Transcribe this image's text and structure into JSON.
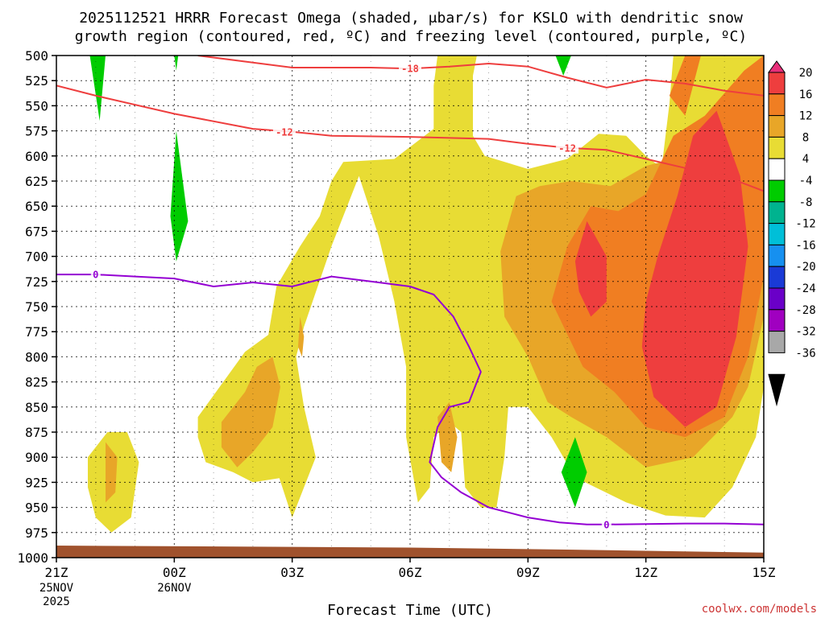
{
  "chart_data": {
    "type": "contour",
    "title_line1": "2025112521 HRRR Forecast Omega (shaded, μbar/s) for KSLO with dendritic snow",
    "title_line2": "growth region (contoured, red, ºC) and freezing level (contoured, purple, ºC)",
    "xlabel": "Forecast Time (UTC)",
    "credit": "coolwx.com/models",
    "x_ticks": [
      {
        "hour": 0,
        "label": "21Z",
        "date1": "25NOV",
        "date2": "2025"
      },
      {
        "hour": 3,
        "label": "00Z",
        "date1": "26NOV",
        "date2": ""
      },
      {
        "hour": 6,
        "label": "03Z",
        "date1": "",
        "date2": ""
      },
      {
        "hour": 9,
        "label": "06Z",
        "date1": "",
        "date2": ""
      },
      {
        "hour": 12,
        "label": "09Z",
        "date1": "",
        "date2": ""
      },
      {
        "hour": 15,
        "label": "12Z",
        "date1": "",
        "date2": ""
      },
      {
        "hour": 18,
        "label": "15Z",
        "date1": "",
        "date2": ""
      }
    ],
    "xlim": [
      0,
      18
    ],
    "ylim": [
      1000,
      500
    ],
    "y_ticks": [
      500,
      525,
      550,
      575,
      600,
      625,
      650,
      675,
      700,
      725,
      750,
      775,
      800,
      825,
      850,
      875,
      900,
      925,
      950,
      975,
      1000
    ],
    "colorbar": {
      "levels": [
        "20",
        "16",
        "12",
        "8",
        "4",
        "-4",
        "-8",
        "-12",
        "-16",
        "-20",
        "-24",
        "-28",
        "-32",
        "-36"
      ],
      "bins": [
        {
          "color": "#e8307a"
        },
        {
          "color": "#ee3e3e"
        },
        {
          "color": "#f07e22"
        },
        {
          "color": "#e8a628"
        },
        {
          "color": "#e8dc34"
        },
        {
          "color": "#ffffff"
        },
        {
          "color": "#00cc00"
        },
        {
          "color": "#00b38f"
        },
        {
          "color": "#00bfd8"
        },
        {
          "color": "#1690f0"
        },
        {
          "color": "#1a3ad6"
        },
        {
          "color": "#6a00c8"
        },
        {
          "color": "#a000c0"
        },
        {
          "color": "#a8a8a8"
        },
        {
          "color": "#000000"
        }
      ]
    },
    "dendritic_contours": [
      {
        "level": -12,
        "points": [
          [
            0,
            530
          ],
          [
            1,
            540
          ],
          [
            3,
            558
          ],
          [
            5,
            573
          ],
          [
            6,
            576
          ],
          [
            7,
            580
          ],
          [
            9,
            581
          ],
          [
            11,
            583
          ],
          [
            12,
            588
          ],
          [
            13,
            592
          ],
          [
            14,
            594
          ],
          [
            15,
            603
          ],
          [
            16,
            612
          ],
          [
            17,
            620
          ],
          [
            18,
            635
          ]
        ],
        "labels": [
          {
            "text": "-12",
            "hour": 5.8,
            "p": 576
          },
          {
            "text": "-12",
            "hour": 13.0,
            "p": 592
          }
        ]
      },
      {
        "level": -18,
        "points": [
          [
            3.6,
            500
          ],
          [
            5,
            507
          ],
          [
            6,
            512
          ],
          [
            8,
            512
          ],
          [
            9,
            513
          ],
          [
            10,
            511
          ],
          [
            11,
            508
          ],
          [
            12,
            511
          ],
          [
            13,
            522
          ],
          [
            14,
            532
          ],
          [
            15,
            524
          ],
          [
            16,
            528
          ],
          [
            17,
            535
          ],
          [
            18,
            540
          ]
        ],
        "labels": [
          {
            "text": "-18",
            "hour": 9.0,
            "p": 513
          }
        ]
      }
    ],
    "freezing_level": {
      "level": 0,
      "points": [
        [
          0,
          718
        ],
        [
          1,
          718
        ],
        [
          2,
          720
        ],
        [
          3,
          722
        ],
        [
          4,
          730
        ],
        [
          5,
          726
        ],
        [
          6,
          730
        ],
        [
          7,
          720
        ],
        [
          8,
          725
        ],
        [
          9,
          730
        ],
        [
          9.6,
          738
        ],
        [
          10.1,
          760
        ],
        [
          10.5,
          790
        ],
        [
          10.8,
          815
        ],
        [
          10.5,
          845
        ],
        [
          10,
          850
        ],
        [
          9.7,
          870
        ],
        [
          9.5,
          905
        ],
        [
          9.8,
          920
        ],
        [
          10.3,
          935
        ],
        [
          11,
          950
        ],
        [
          12,
          960
        ],
        [
          12.8,
          965
        ],
        [
          13.5,
          967
        ],
        [
          14,
          967
        ],
        [
          16,
          966
        ],
        [
          17,
          966
        ],
        [
          18,
          967
        ]
      ],
      "labels": [
        {
          "text": "0",
          "hour": 1.0,
          "p": 718
        },
        {
          "text": "0",
          "hour": 14.0,
          "p": 967
        }
      ]
    },
    "omega_regions": [
      {
        "level": "4",
        "color": "#e8dc34",
        "points": [
          [
            9.7,
            500
          ],
          [
            10.7,
            500
          ],
          [
            10.6,
            520
          ],
          [
            10.6,
            550
          ],
          [
            10.6,
            580
          ],
          [
            10.9,
            600
          ],
          [
            12,
            613
          ],
          [
            13,
            603
          ],
          [
            13.8,
            578
          ],
          [
            14.5,
            580
          ],
          [
            15,
            600
          ],
          [
            15.4,
            612
          ],
          [
            15.6,
            548
          ],
          [
            15.7,
            500
          ],
          [
            18,
            500
          ],
          [
            18,
            830
          ],
          [
            17.8,
            880
          ],
          [
            17.2,
            930
          ],
          [
            16.5,
            960
          ],
          [
            15.5,
            958
          ],
          [
            14.5,
            945
          ],
          [
            13.2,
            920
          ],
          [
            12.6,
            880
          ],
          [
            12,
            850
          ],
          [
            11.5,
            850
          ],
          [
            11.4,
            900
          ],
          [
            11.2,
            950
          ],
          [
            10.8,
            950
          ],
          [
            10.4,
            930
          ],
          [
            10.3,
            875
          ],
          [
            10,
            865
          ],
          [
            9.6,
            880
          ],
          [
            9.5,
            930
          ],
          [
            9.2,
            945
          ],
          [
            8.9,
            880
          ],
          [
            8.9,
            810
          ],
          [
            8.6,
            745
          ],
          [
            8.2,
            680
          ],
          [
            7.7,
            620
          ],
          [
            7.0,
            690
          ],
          [
            6.3,
            770
          ],
          [
            6.1,
            800
          ],
          [
            6.3,
            850
          ],
          [
            6.6,
            900
          ],
          [
            6.0,
            960
          ],
          [
            5.5,
            900
          ],
          [
            5.3,
            800
          ],
          [
            5.6,
            730
          ],
          [
            6.2,
            690
          ],
          [
            6.7,
            660
          ],
          [
            7.0,
            625
          ],
          [
            7.3,
            606
          ],
          [
            8.6,
            603
          ],
          [
            9.6,
            573
          ],
          [
            9.6,
            530
          ]
        ]
      },
      {
        "level": "4",
        "color": "#e8dc34",
        "points": [
          [
            3.6,
            860
          ],
          [
            4.8,
            795
          ],
          [
            5.5,
            775
          ],
          [
            5.8,
            780
          ],
          [
            6.1,
            850
          ],
          [
            5.8,
            920
          ],
          [
            5.0,
            925
          ],
          [
            4.5,
            915
          ],
          [
            3.8,
            905
          ],
          [
            3.6,
            880
          ]
        ]
      },
      {
        "level": "4",
        "color": "#e8dc34",
        "points": [
          [
            0.8,
            900
          ],
          [
            1.3,
            875
          ],
          [
            1.8,
            875
          ],
          [
            2.1,
            905
          ],
          [
            1.9,
            960
          ],
          [
            1.4,
            975
          ],
          [
            1.0,
            960
          ],
          [
            0.8,
            930
          ]
        ]
      },
      {
        "level": "8",
        "color": "#e8a628",
        "points": [
          [
            11.3,
            695
          ],
          [
            11.7,
            640
          ],
          [
            12.3,
            630
          ],
          [
            13.1,
            625
          ],
          [
            14.1,
            630
          ],
          [
            15,
            610
          ],
          [
            16,
            600
          ],
          [
            17,
            580
          ],
          [
            18,
            570
          ],
          [
            18,
            760
          ],
          [
            17.6,
            830
          ],
          [
            17.2,
            860
          ],
          [
            16.2,
            900
          ],
          [
            15,
            910
          ],
          [
            14,
            880
          ],
          [
            13.1,
            860
          ],
          [
            12.5,
            845
          ],
          [
            12,
            800
          ],
          [
            11.4,
            760
          ]
        ]
      },
      {
        "level": "8",
        "color": "#e8a628",
        "points": [
          [
            4.2,
            865
          ],
          [
            4.8,
            835
          ],
          [
            5.1,
            810
          ],
          [
            5.5,
            800
          ],
          [
            5.7,
            830
          ],
          [
            5.5,
            870
          ],
          [
            5.0,
            895
          ],
          [
            4.6,
            910
          ],
          [
            4.2,
            890
          ]
        ]
      },
      {
        "level": "8",
        "color": "#e8a628",
        "points": [
          [
            6.2,
            760
          ],
          [
            6.3,
            780
          ],
          [
            6.25,
            800
          ],
          [
            6.15,
            790
          ]
        ]
      },
      {
        "level": "8",
        "color": "#e8a628",
        "points": [
          [
            9.7,
            860
          ],
          [
            10,
            845
          ],
          [
            10.2,
            880
          ],
          [
            10.05,
            915
          ],
          [
            9.8,
            905
          ]
        ]
      },
      {
        "level": "8",
        "color": "#e8a628",
        "points": [
          [
            1.25,
            885
          ],
          [
            1.55,
            900
          ],
          [
            1.5,
            935
          ],
          [
            1.25,
            945
          ]
        ]
      },
      {
        "level": "12",
        "color": "#f07e22",
        "points": [
          [
            12.6,
            745
          ],
          [
            13,
            690
          ],
          [
            13.6,
            650
          ],
          [
            14.3,
            655
          ],
          [
            15,
            638
          ],
          [
            15.7,
            580
          ],
          [
            16.5,
            560
          ],
          [
            17.5,
            515
          ],
          [
            18,
            500
          ],
          [
            18,
            720
          ],
          [
            17.6,
            800
          ],
          [
            17,
            860
          ],
          [
            16,
            880
          ],
          [
            15,
            870
          ],
          [
            14.2,
            835
          ],
          [
            13.4,
            810
          ]
        ]
      },
      {
        "level": "12",
        "color": "#f07e22",
        "points": [
          [
            15.6,
            540
          ],
          [
            16,
            500
          ],
          [
            16.4,
            500
          ],
          [
            16,
            560
          ]
        ]
      },
      {
        "level": "16",
        "color": "#ee3e3e",
        "points": [
          [
            13.2,
            705
          ],
          [
            13.5,
            665
          ],
          [
            14,
            700
          ],
          [
            14,
            745
          ],
          [
            13.6,
            760
          ],
          [
            13.3,
            735
          ]
        ]
      },
      {
        "level": "16",
        "color": "#ee3e3e",
        "points": [
          [
            15,
            745
          ],
          [
            15.3,
            700
          ],
          [
            15.8,
            640
          ],
          [
            16.2,
            580
          ],
          [
            16.8,
            555
          ],
          [
            17.4,
            620
          ],
          [
            17.6,
            690
          ],
          [
            17.3,
            780
          ],
          [
            16.8,
            850
          ],
          [
            16,
            870
          ],
          [
            15.2,
            840
          ],
          [
            14.9,
            790
          ]
        ]
      },
      {
        "level": "-4",
        "color": "#00cc00",
        "points": [
          [
            0.85,
            500
          ],
          [
            1.25,
            500
          ],
          [
            1.1,
            565
          ]
        ]
      },
      {
        "level": "-4",
        "color": "#00cc00",
        "points": [
          [
            3.0,
            500
          ],
          [
            3.1,
            500
          ],
          [
            3.05,
            515
          ]
        ]
      },
      {
        "level": "-4",
        "color": "#00cc00",
        "points": [
          [
            2.9,
            660
          ],
          [
            3.05,
            575
          ],
          [
            3.35,
            665
          ],
          [
            3.05,
            705
          ]
        ]
      },
      {
        "level": "-4",
        "color": "#00cc00",
        "points": [
          [
            12.7,
            500
          ],
          [
            13.1,
            500
          ],
          [
            12.9,
            520
          ]
        ]
      },
      {
        "level": "-4",
        "color": "#00cc00",
        "points": [
          [
            12.85,
            915
          ],
          [
            13.2,
            880
          ],
          [
            13.5,
            915
          ],
          [
            13.2,
            950
          ]
        ]
      }
    ],
    "ground": {
      "color": "#a0522d",
      "points": [
        [
          0,
          988
        ],
        [
          9,
          990
        ],
        [
          13,
          992
        ],
        [
          18,
          995
        ]
      ]
    }
  }
}
